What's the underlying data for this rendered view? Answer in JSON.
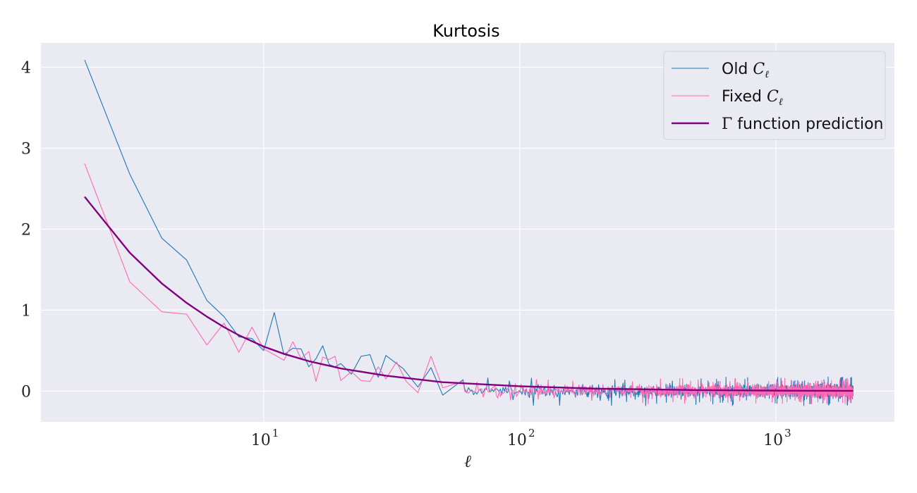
{
  "chart_data": {
    "type": "line",
    "title": "Kurtosis",
    "xlabel": "ℓ",
    "ylabel": "",
    "xscale": "log",
    "xlim": [
      1.35,
      2900
    ],
    "ylim": [
      -0.38,
      4.3
    ],
    "grid": true,
    "legend_position": "top-right",
    "x_ticks": [
      {
        "base": "10",
        "exponent": "1",
        "value": 10
      },
      {
        "base": "10",
        "exponent": "2",
        "value": 100
      },
      {
        "base": "10",
        "exponent": "3",
        "value": 1000
      }
    ],
    "y_ticks": [
      0,
      1,
      2,
      3,
      4
    ],
    "legend": [
      {
        "text": "Old ",
        "math": "C",
        "sub": "ℓ"
      },
      {
        "text": "Fixed ",
        "math": "C",
        "sub": "ℓ"
      },
      {
        "gamma": "Γ",
        "text": " function prediction"
      }
    ],
    "series": [
      {
        "name": "Old Cℓ",
        "color": "#1f77b4",
        "width": 1.1,
        "x": [
          2,
          3,
          4,
          5,
          6,
          7,
          8,
          9,
          10,
          11,
          12,
          13,
          14,
          15,
          16,
          17,
          18,
          19,
          20,
          22,
          24,
          26,
          28,
          30,
          35,
          40,
          45,
          50,
          60
        ],
        "y": [
          4.09,
          2.68,
          1.89,
          1.62,
          1.12,
          0.92,
          0.67,
          0.65,
          0.5,
          0.97,
          0.45,
          0.53,
          0.52,
          0.3,
          0.4,
          0.56,
          0.33,
          0.3,
          0.34,
          0.21,
          0.43,
          0.45,
          0.17,
          0.44,
          0.28,
          0.05,
          0.29,
          -0.05,
          0.14
        ],
        "noise": {
          "x_start": 60,
          "x_end": 2000,
          "amplitude": 0.12,
          "max_amplitude": 0.18,
          "seed": 7
        }
      },
      {
        "name": "Fixed Cℓ",
        "color": "#ff69b4",
        "width": 1.1,
        "x": [
          2,
          3,
          4,
          5,
          6,
          7,
          8,
          9,
          10,
          11,
          12,
          13,
          14,
          15,
          16,
          17,
          18,
          19,
          20,
          22,
          24,
          26,
          28,
          30,
          33,
          36,
          40,
          45,
          50,
          60
        ],
        "y": [
          2.81,
          1.35,
          0.98,
          0.95,
          0.57,
          0.84,
          0.48,
          0.79,
          0.52,
          0.45,
          0.38,
          0.61,
          0.4,
          0.49,
          0.12,
          0.42,
          0.39,
          0.43,
          0.13,
          0.24,
          0.13,
          0.12,
          0.3,
          0.15,
          0.36,
          0.12,
          -0.02,
          0.43,
          0.04,
          0.12
        ],
        "noise": {
          "x_start": 60,
          "x_end": 2000,
          "amplitude": 0.11,
          "max_amplitude": 0.16,
          "seed": 13
        }
      },
      {
        "name": "Γ function prediction",
        "color": "#800080",
        "width": 2.4,
        "x": [
          2,
          3,
          4,
          5,
          6,
          7,
          8,
          10,
          12,
          15,
          20,
          30,
          50,
          100,
          200,
          500,
          1000,
          2000
        ],
        "y": [
          2.4,
          1.71,
          1.33,
          1.09,
          0.92,
          0.79,
          0.69,
          0.55,
          0.46,
          0.37,
          0.28,
          0.19,
          0.11,
          0.06,
          0.03,
          0.012,
          0.006,
          0.003
        ]
      }
    ]
  }
}
